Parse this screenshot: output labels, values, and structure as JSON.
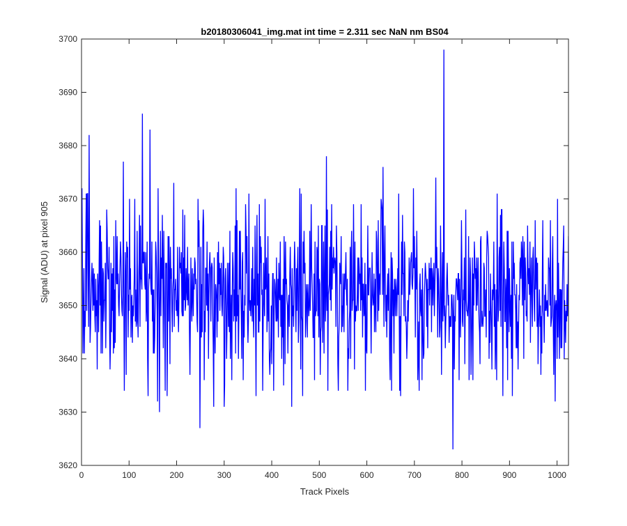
{
  "chart_data": {
    "type": "line",
    "title": "b20180306041_img.mat int time = 2.311 sec  NaN nm BS04",
    "xlabel": "Track Pixels",
    "ylabel": "Signal (ADU) at pixel 905",
    "xlim": [
      0,
      1024
    ],
    "ylim": [
      3620,
      3700
    ],
    "xticks": [
      0,
      100,
      200,
      300,
      400,
      500,
      600,
      700,
      800,
      900,
      1000
    ],
    "yticks": [
      3620,
      3630,
      3640,
      3650,
      3660,
      3670,
      3680,
      3690,
      3700
    ],
    "grid": false,
    "legend": "none",
    "series": [
      {
        "color": "#0000ff",
        "x_start": 1,
        "x_step": 1,
        "noise": {
          "mean": 3653,
          "std": 6.8,
          "min": 3628,
          "max": 3672,
          "count": 1024
        },
        "peaks": [
          {
            "x": 3,
            "y": 3641
          },
          {
            "x": 6,
            "y": 3641
          },
          {
            "x": 10,
            "y": 3671
          },
          {
            "x": 13,
            "y": 3671
          },
          {
            "x": 16,
            "y": 3682
          },
          {
            "x": 18,
            "y": 3643
          },
          {
            "x": 33,
            "y": 3638
          },
          {
            "x": 38,
            "y": 3666
          },
          {
            "x": 44,
            "y": 3641
          },
          {
            "x": 53,
            "y": 3668
          },
          {
            "x": 60,
            "y": 3638
          },
          {
            "x": 72,
            "y": 3666
          },
          {
            "x": 88,
            "y": 3677
          },
          {
            "x": 90,
            "y": 3634
          },
          {
            "x": 101,
            "y": 3670
          },
          {
            "x": 112,
            "y": 3670
          },
          {
            "x": 128,
            "y": 3686
          },
          {
            "x": 140,
            "y": 3633
          },
          {
            "x": 144,
            "y": 3683
          },
          {
            "x": 151,
            "y": 3641
          },
          {
            "x": 160,
            "y": 3632
          },
          {
            "x": 164,
            "y": 3630
          },
          {
            "x": 170,
            "y": 3667
          },
          {
            "x": 180,
            "y": 3633
          },
          {
            "x": 194,
            "y": 3673
          },
          {
            "x": 228,
            "y": 3637
          },
          {
            "x": 245,
            "y": 3670
          },
          {
            "x": 249,
            "y": 3627
          },
          {
            "x": 258,
            "y": 3636
          },
          {
            "x": 264,
            "y": 3662
          },
          {
            "x": 278,
            "y": 3631
          },
          {
            "x": 300,
            "y": 3631
          },
          {
            "x": 325,
            "y": 3672
          },
          {
            "x": 340,
            "y": 3636
          },
          {
            "x": 352,
            "y": 3671
          },
          {
            "x": 372,
            "y": 3645
          },
          {
            "x": 386,
            "y": 3670
          },
          {
            "x": 404,
            "y": 3634
          },
          {
            "x": 418,
            "y": 3662
          },
          {
            "x": 442,
            "y": 3631
          },
          {
            "x": 459,
            "y": 3672
          },
          {
            "x": 465,
            "y": 3633
          },
          {
            "x": 490,
            "y": 3636
          },
          {
            "x": 515,
            "y": 3678
          },
          {
            "x": 518,
            "y": 3634
          },
          {
            "x": 540,
            "y": 3634
          },
          {
            "x": 560,
            "y": 3634
          },
          {
            "x": 575,
            "y": 3662
          },
          {
            "x": 597,
            "y": 3634
          },
          {
            "x": 634,
            "y": 3676
          },
          {
            "x": 652,
            "y": 3634
          },
          {
            "x": 667,
            "y": 3671
          },
          {
            "x": 698,
            "y": 3672
          },
          {
            "x": 716,
            "y": 3636
          },
          {
            "x": 745,
            "y": 3674
          },
          {
            "x": 757,
            "y": 3637
          },
          {
            "x": 762,
            "y": 3698
          },
          {
            "x": 765,
            "y": 3642
          },
          {
            "x": 781,
            "y": 3623
          },
          {
            "x": 784,
            "y": 3638
          },
          {
            "x": 808,
            "y": 3668
          },
          {
            "x": 870,
            "y": 3638
          },
          {
            "x": 886,
            "y": 3633
          },
          {
            "x": 906,
            "y": 3633
          },
          {
            "x": 918,
            "y": 3638
          },
          {
            "x": 938,
            "y": 3665
          },
          {
            "x": 960,
            "y": 3639
          },
          {
            "x": 996,
            "y": 3632
          },
          {
            "x": 1000,
            "y": 3640
          },
          {
            "x": 1015,
            "y": 3640
          }
        ]
      }
    ]
  }
}
